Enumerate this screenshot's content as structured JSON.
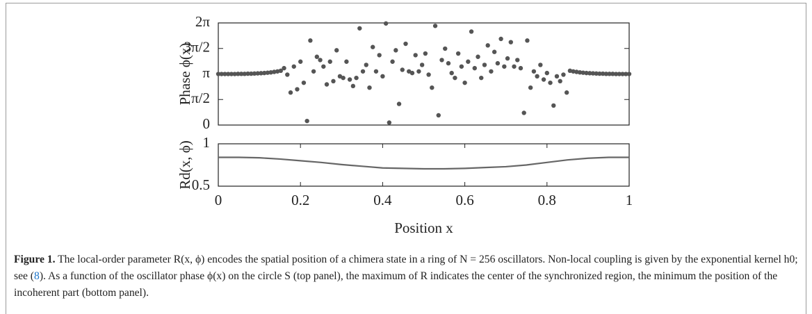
{
  "chart_data": [
    {
      "type": "scatter",
      "ylabel": "Phase ϕ(x)",
      "color": "#555555",
      "xlim": [
        0,
        1
      ],
      "ylim": [
        0,
        6.2832
      ],
      "yticks": [
        0,
        {
          "value": 1.5708,
          "label": "π/2"
        },
        {
          "value": 3.1416,
          "label": "π"
        },
        {
          "value": 4.7124,
          "label": "3π/2"
        },
        {
          "value": 6.2832,
          "label": "2π"
        }
      ],
      "x": [
        0,
        0.008,
        0.016,
        0.024,
        0.032,
        0.04,
        0.048,
        0.056,
        0.064,
        0.072,
        0.08,
        0.088,
        0.096,
        0.104,
        0.112,
        0.12,
        0.128,
        0.136,
        0.144,
        0.152,
        0.16,
        0.168,
        0.176,
        0.184,
        0.192,
        0.2,
        0.208,
        0.216,
        0.224,
        0.232,
        0.24,
        0.248,
        0.256,
        0.264,
        0.272,
        0.28,
        0.288,
        0.296,
        0.304,
        0.312,
        0.32,
        0.328,
        0.336,
        0.344,
        0.352,
        0.36,
        0.368,
        0.376,
        0.384,
        0.392,
        0.4,
        0.408,
        0.416,
        0.424,
        0.432,
        0.44,
        0.448,
        0.456,
        0.464,
        0.472,
        0.48,
        0.488,
        0.496,
        0.504,
        0.512,
        0.52,
        0.528,
        0.536,
        0.544,
        0.552,
        0.56,
        0.568,
        0.576,
        0.584,
        0.592,
        0.6,
        0.608,
        0.616,
        0.624,
        0.632,
        0.64,
        0.648,
        0.656,
        0.664,
        0.672,
        0.68,
        0.688,
        0.696,
        0.704,
        0.712,
        0.72,
        0.728,
        0.736,
        0.744,
        0.752,
        0.76,
        0.768,
        0.776,
        0.784,
        0.792,
        0.8,
        0.808,
        0.816,
        0.824,
        0.832,
        0.84,
        0.848,
        0.856,
        0.864,
        0.872,
        0.88,
        0.888,
        0.896,
        0.904,
        0.912,
        0.92,
        0.928,
        0.936,
        0.944,
        0.952,
        0.96,
        0.968,
        0.976,
        0.984,
        0.992,
        1
      ],
      "values": [
        3.14,
        3.14,
        3.14,
        3.14,
        3.14,
        3.14,
        3.15,
        3.15,
        3.15,
        3.16,
        3.16,
        3.17,
        3.18,
        3.19,
        3.2,
        3.22,
        3.24,
        3.27,
        3.3,
        3.34,
        3.5,
        3.1,
        2.0,
        3.6,
        2.2,
        3.9,
        2.6,
        0.25,
        5.2,
        3.3,
        4.2,
        4.0,
        3.6,
        2.5,
        3.9,
        2.7,
        4.6,
        3.0,
        2.9,
        3.9,
        2.8,
        2.4,
        2.9,
        5.95,
        3.3,
        3.7,
        2.3,
        4.8,
        3.3,
        4.3,
        3.0,
        6.25,
        0.15,
        3.9,
        4.6,
        1.3,
        3.4,
        5.0,
        3.3,
        3.2,
        4.3,
        3.3,
        3.7,
        4.4,
        3.1,
        2.3,
        6.1,
        0.6,
        4.0,
        4.7,
        3.8,
        3.2,
        2.9,
        4.4,
        3.6,
        2.6,
        3.9,
        5.75,
        3.5,
        4.2,
        2.9,
        3.7,
        4.9,
        3.3,
        4.5,
        3.8,
        5.3,
        3.6,
        4.1,
        5.1,
        3.6,
        4.0,
        3.5,
        0.75,
        5.2,
        2.3,
        3.3,
        3.0,
        3.7,
        2.8,
        3.2,
        2.6,
        1.2,
        3.0,
        2.7,
        3.1,
        2.0,
        3.34,
        3.3,
        3.27,
        3.24,
        3.22,
        3.2,
        3.19,
        3.18,
        3.17,
        3.16,
        3.16,
        3.15,
        3.15,
        3.15,
        3.14,
        3.14,
        3.14,
        3.14,
        3.14
      ]
    },
    {
      "type": "line",
      "ylabel": "Rd(x, ϕ)",
      "xlabel": "Position x",
      "color": "#666666",
      "xlim": [
        0,
        1
      ],
      "ylim": [
        0.5,
        1
      ],
      "yticks": [
        0.5,
        1
      ],
      "xticks": [
        0,
        0.2,
        0.4,
        0.6,
        0.8,
        1
      ],
      "x": [
        0,
        0.05,
        0.1,
        0.15,
        0.2,
        0.25,
        0.3,
        0.35,
        0.4,
        0.45,
        0.5,
        0.55,
        0.6,
        0.65,
        0.7,
        0.75,
        0.8,
        0.85,
        0.9,
        0.95,
        1
      ],
      "values": [
        0.84,
        0.84,
        0.835,
        0.82,
        0.8,
        0.78,
        0.755,
        0.735,
        0.715,
        0.71,
        0.705,
        0.705,
        0.71,
        0.72,
        0.73,
        0.75,
        0.78,
        0.81,
        0.83,
        0.84,
        0.84
      ]
    }
  ],
  "caption": {
    "label": "Figure 1.",
    "text_before": "The local-order parameter R(x, ϕ) encodes the spatial position of a chimera state in a ring of N = 256 oscillators. Non-local coupling is given by the exponential kernel h0; see (",
    "ref": "8",
    "text_after": "). As a function of the oscillator phase ϕ(x) on the circle S (top panel), the maximum of R indicates the center of the synchronized region, the minimum the position of the incoherent part (bottom panel)."
  }
}
